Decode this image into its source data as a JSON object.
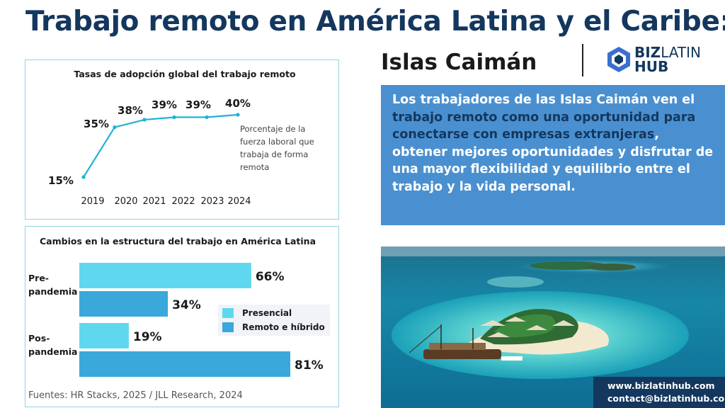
{
  "header": {
    "title": "Trabajo remoto en América Latina y el Caribe:",
    "subtitle": "Islas Caimán",
    "logo_bold": "BIZ",
    "logo_light": "LATIN",
    "logo_line2": "HUB"
  },
  "quote": {
    "part1": "Los trabajadores de las Islas Caimán ven el ",
    "highlight1": "trabajo remoto como una oportunidad para conectarse con empresas extranjeras",
    "part2": ", obtener mejores oportunidades y disfrutar de una mayor flexibilidad y equilibrio entre el trabajo y la vida personal."
  },
  "contact": {
    "web": "www.bizlatinhub.com",
    "email": "contact@bizlatinhub.com"
  },
  "source": "Fuentes: HR Stacks, 2025 / JLL Research, 2024",
  "colors": {
    "title": "#14375e",
    "line": "#1fb2d6",
    "presencial": "#5fd8ef",
    "remoto": "#3aa8da",
    "quote_bg": "#4a90d0"
  },
  "chart_data": [
    {
      "type": "line",
      "title": "Tasas de adopción global del trabajo remoto",
      "x": [
        "2019",
        "2020",
        "2021",
        "2022",
        "2023",
        "2024"
      ],
      "values": [
        15,
        35,
        38,
        39,
        39,
        40
      ],
      "labels": [
        "15%",
        "35%",
        "38%",
        "39%",
        "39%",
        "40%"
      ],
      "annotation": "Porcentaje de la fuerza laboral que trabaja de forma remota",
      "annotation_lines": [
        "Porcentaje de la",
        "fuerza laboral que",
        "trabaja de forma",
        "remota"
      ],
      "ylim": [
        15,
        40
      ]
    },
    {
      "type": "bar",
      "orientation": "horizontal",
      "title": "Cambios en la estructura del trabajo en América Latina",
      "categories": [
        "Pre-pandemia",
        "Pos-pandemia"
      ],
      "category_lines": [
        [
          "Pre-",
          "pandemia"
        ],
        [
          "Pos-",
          "pandemia"
        ]
      ],
      "series": [
        {
          "name": "Presencial",
          "values": [
            66,
            19
          ],
          "labels": [
            "66%",
            "19%"
          ]
        },
        {
          "name": "Remoto e híbrido",
          "values": [
            34,
            81
          ],
          "labels": [
            "34%",
            "81%"
          ]
        }
      ],
      "xlim": [
        0,
        81
      ],
      "legend": "right"
    }
  ]
}
